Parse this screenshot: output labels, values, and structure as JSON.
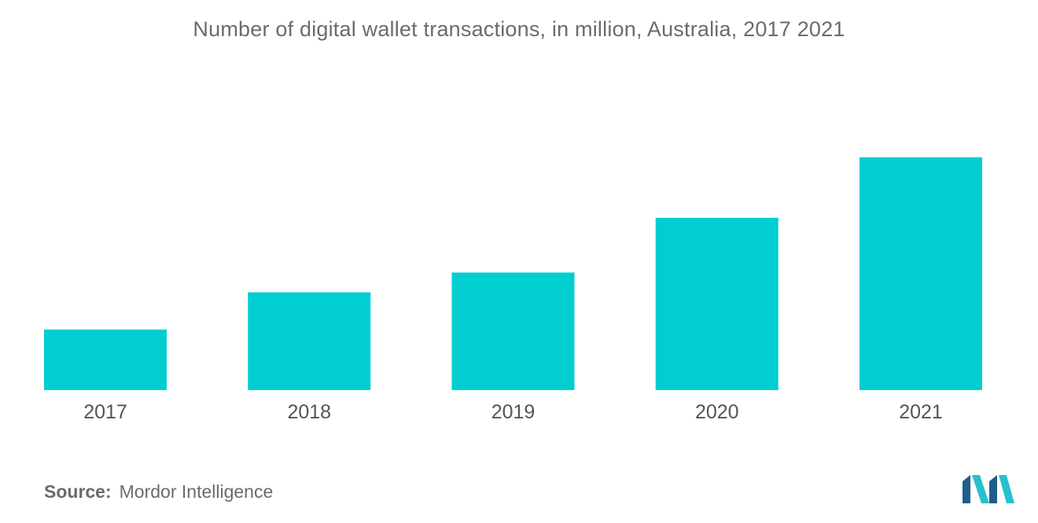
{
  "chart_data": {
    "type": "bar",
    "title": "Number of digital wallet transactions, in million, Australia, 2017  2021",
    "categories": [
      "2017",
      "2018",
      "2019",
      "2020",
      "2021"
    ],
    "values": [
      26,
      42,
      50.5,
      74,
      100
    ],
    "xlabel": "",
    "ylabel": "",
    "ylim": [
      0,
      100
    ],
    "grid": false,
    "legend": "none",
    "bar_color": "#00CED1"
  },
  "source": {
    "label": "Source:",
    "text": "Mordor Intelligence"
  },
  "colors": {
    "text": "#6b6b6b",
    "logo_dark": "#1f5d8c",
    "logo_light": "#26c1cc"
  }
}
